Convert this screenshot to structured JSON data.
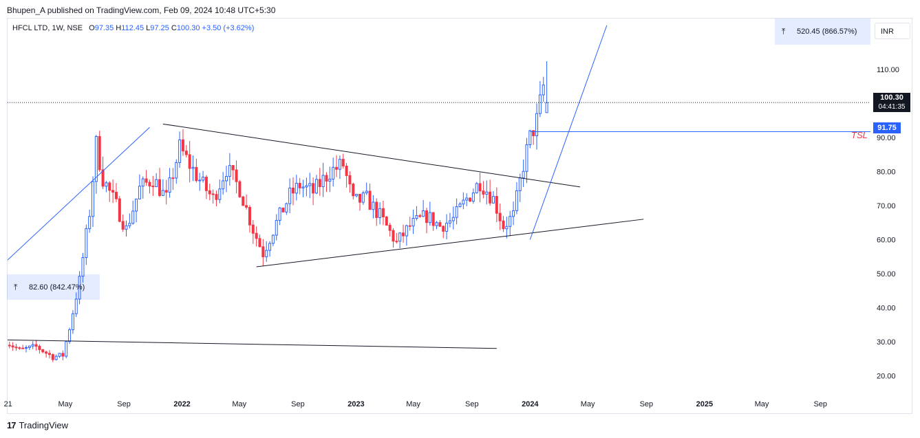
{
  "header": {
    "publisher": "Bhupen_A published on TradingView.com, Feb 09, 2024 10:48 UTC+5:30"
  },
  "legend": {
    "symbol": "HFCL LTD, 1W, NSE",
    "o_label": "O",
    "o": "97.35",
    "h_label": "H",
    "h": "112.45",
    "l_label": "L",
    "l": "97.25",
    "c_label": "C",
    "c": "100.30",
    "change": "+3.50 (+3.62%)"
  },
  "currency": "INR",
  "measure_top": {
    "text": "520.45 (866.57%)"
  },
  "measure_left": {
    "text": "82.60 (842.47%)"
  },
  "current_price": {
    "value": "100.30",
    "countdown": "04:41:35"
  },
  "tsl": {
    "value": "91.75",
    "label": "TSL"
  },
  "footer": {
    "brand": "TradingView",
    "logo": "17"
  },
  "colors": {
    "up": "#2962ff",
    "down": "#f23645",
    "trend": "#2962ff",
    "line": "#131722"
  },
  "chart_data": {
    "type": "candlestick",
    "interval": "1W",
    "y_ticks": [
      "20.00",
      "30.00",
      "40.00",
      "50.00",
      "60.00",
      "70.00",
      "80.00",
      "90.00",
      "100.00",
      "110.00"
    ],
    "ylim": [
      14,
      125
    ],
    "x_ticks": [
      {
        "label": "21",
        "date": "2021-01-01"
      },
      {
        "label": "May",
        "date": "2021-05-01"
      },
      {
        "label": "Sep",
        "date": "2021-09-01"
      },
      {
        "label": "2022",
        "date": "2022-01-01"
      },
      {
        "label": "May",
        "date": "2022-05-01"
      },
      {
        "label": "Sep",
        "date": "2022-09-01"
      },
      {
        "label": "2023",
        "date": "2023-01-01"
      },
      {
        "label": "May",
        "date": "2023-05-01"
      },
      {
        "label": "Sep",
        "date": "2023-09-01"
      },
      {
        "label": "2024",
        "date": "2024-01-01"
      },
      {
        "label": "May",
        "date": "2024-05-01"
      },
      {
        "label": "Sep",
        "date": "2024-09-01"
      },
      {
        "label": "2025",
        "date": "2025-01-01"
      },
      {
        "label": "May",
        "date": "2025-05-01"
      },
      {
        "label": "Sep",
        "date": "2025-09-01"
      }
    ],
    "xlim": [
      "2020-12-31",
      "2025-12-15"
    ],
    "anchors": [
      [
        "2020-12-28",
        30.0
      ],
      [
        "2021-01-25",
        27.5
      ],
      [
        "2021-03-01",
        28.5
      ],
      [
        "2021-04-05",
        25.5
      ],
      [
        "2021-04-26",
        26.0
      ],
      [
        "2021-05-10",
        34.0
      ],
      [
        "2021-05-31",
        48.0
      ],
      [
        "2021-06-21",
        68.0
      ],
      [
        "2021-07-05",
        88.0
      ],
      [
        "2021-07-19",
        78.0
      ],
      [
        "2021-08-16",
        70.0
      ],
      [
        "2021-09-06",
        63.0
      ],
      [
        "2021-10-04",
        75.0
      ],
      [
        "2021-11-01",
        78.0
      ],
      [
        "2021-11-29",
        72.0
      ],
      [
        "2021-12-27",
        87.0
      ],
      [
        "2022-01-17",
        82.0
      ],
      [
        "2022-02-14",
        76.0
      ],
      [
        "2022-03-07",
        72.0
      ],
      [
        "2022-04-04",
        81.0
      ],
      [
        "2022-05-02",
        75.0
      ],
      [
        "2022-05-30",
        63.0
      ],
      [
        "2022-06-20",
        56.0
      ],
      [
        "2022-07-18",
        65.0
      ],
      [
        "2022-08-15",
        73.0
      ],
      [
        "2022-09-05",
        76.0
      ],
      [
        "2022-10-03",
        74.0
      ],
      [
        "2022-11-07",
        80.0
      ],
      [
        "2022-12-05",
        82.0
      ],
      [
        "2022-12-26",
        71.0
      ],
      [
        "2023-01-23",
        72.0
      ],
      [
        "2023-02-20",
        67.0
      ],
      [
        "2023-03-27",
        59.0
      ],
      [
        "2023-04-24",
        64.0
      ],
      [
        "2023-05-29",
        67.0
      ],
      [
        "2023-06-26",
        64.0
      ],
      [
        "2023-07-24",
        66.0
      ],
      [
        "2023-08-21",
        72.0
      ],
      [
        "2023-09-18",
        77.0
      ],
      [
        "2023-10-16",
        72.0
      ],
      [
        "2023-11-06",
        64.0
      ],
      [
        "2023-11-27",
        67.0
      ],
      [
        "2023-12-18",
        82.0
      ],
      [
        "2024-01-01",
        90.0
      ],
      [
        "2024-01-15",
        95.0
      ],
      [
        "2024-01-29",
        105.0
      ],
      [
        "2024-02-05",
        100.3
      ]
    ],
    "last_candle": {
      "date": "2024-02-05",
      "o": 97.35,
      "h": 112.45,
      "l": 97.25,
      "c": 100.3
    },
    "horizontal_lines": [
      {
        "name": "current-price",
        "y": 100.3,
        "from": "2020-12-31",
        "to": "2025-12-15",
        "style": "dotted"
      },
      {
        "name": "tsl",
        "y": 91.75,
        "from": "2024-01-01",
        "to": "2025-12-15",
        "style": "solid"
      }
    ],
    "trendlines": [
      {
        "name": "triangle-upper",
        "color": "line",
        "p1": [
          "2021-11-22",
          94.0
        ],
        "p2": [
          "2024-04-15",
          75.5
        ]
      },
      {
        "name": "triangle-lower",
        "color": "line",
        "p1": [
          "2022-06-06",
          52.0
        ],
        "p2": [
          "2024-08-26",
          66.0
        ]
      },
      {
        "name": "base-line",
        "color": "line",
        "p1": [
          "2020-12-31",
          30.5
        ],
        "p2": [
          "2023-10-23",
          28.0
        ]
      },
      {
        "name": "left-trend",
        "color": "trend",
        "p1": [
          "2020-12-31",
          54.0
        ],
        "p2": [
          "2021-10-25",
          93.0
        ]
      },
      {
        "name": "steep-trend",
        "color": "trend",
        "p1": [
          "2024-01-01",
          60.0
        ],
        "p2": [
          "2024-06-10",
          123.0
        ]
      }
    ]
  }
}
